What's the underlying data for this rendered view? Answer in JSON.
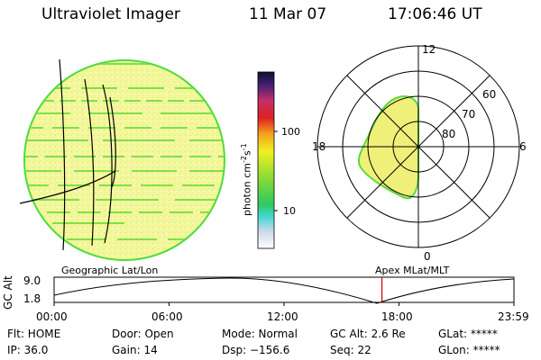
{
  "header": {
    "instrument": "Ultraviolet Imager",
    "date": "11 Mar 07",
    "time": "17:06:46 UT"
  },
  "colorbar": {
    "unit_prefix": "photon cm",
    "exp1": "-2",
    "unit_mid": "s",
    "exp2": "-1",
    "tick_high": "100",
    "tick_low": "10"
  },
  "polar": {
    "labels": {
      "top": "12",
      "bottom": "0",
      "left": "18",
      "right": "6",
      "lat60": "60",
      "lat70": "70",
      "lat80": "80"
    }
  },
  "captions": {
    "left": "Geographic Lat/Lon",
    "right": "Apex MLat/MLT"
  },
  "altitude_plot": {
    "axis_label": "GC Alt",
    "y_ticks": [
      "9.0",
      "1.8"
    ],
    "x_ticks": [
      "00:00",
      "06:00",
      "12:00",
      "18:00",
      "23:59"
    ],
    "current_time_hours": 17.11
  },
  "info": {
    "flt": "Flt: HOME",
    "ip": "IP: 36.0",
    "door": "Door: Open",
    "gain": "Gain: 14",
    "mode": "Mode: Normal",
    "dsp": "Dsp: −156.6",
    "gcalt": "GC Alt: 2.6 Re",
    "seq": "Seq: 22",
    "glat": "GLat: *****",
    "glon": "GLon: *****"
  },
  "colors": {
    "disk_fill": "#f2f7a2",
    "disk_edge": "#4fdc3a",
    "stripe": "#7fe04a",
    "alt_cursor": "#cc0000"
  }
}
